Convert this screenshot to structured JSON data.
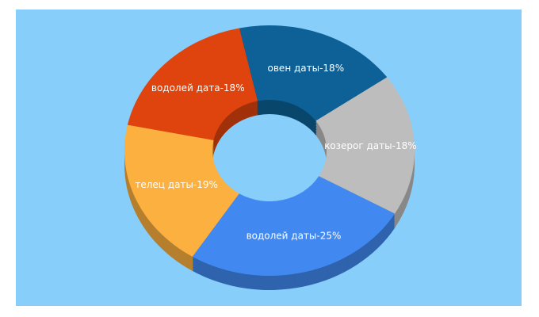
{
  "chart_data": {
    "type": "donut3d",
    "values": [
      18,
      18,
      25,
      19,
      18
    ],
    "value_labels": [
      "овен даты-18%",
      "козерог даты-18%",
      "водолей даты-25%",
      "телец даты-19%",
      "водолей дата-18%"
    ],
    "colors": [
      "#0d6196",
      "#bdbdbd",
      "#4189f0",
      "#fbb040",
      "#e0440e"
    ],
    "background": "#87cefa"
  }
}
